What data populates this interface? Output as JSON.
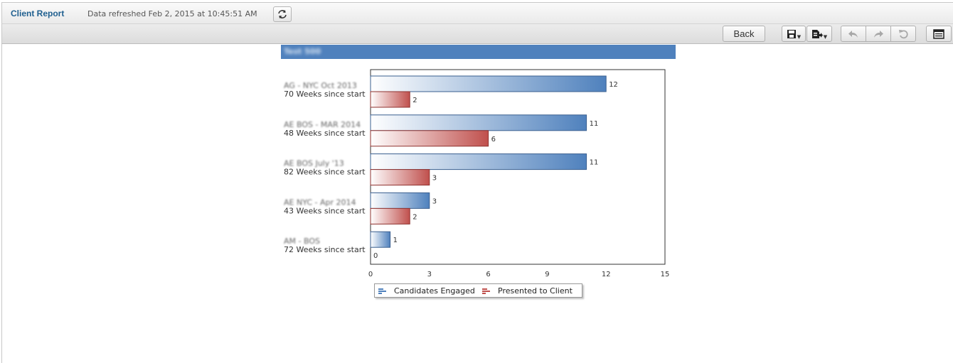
{
  "app": {
    "title": "Client Report",
    "refreshed": "Data refreshed Feb 2, 2015 at 10:45:51 AM"
  },
  "toolbar": {
    "back_label": "Back",
    "icons": [
      "save-icon",
      "export-icon",
      "undo-icon",
      "redo-icon",
      "reset-icon",
      "layout-icon"
    ]
  },
  "report": {
    "header": "Test 500"
  },
  "chart_data": {
    "type": "bar",
    "orientation": "horizontal",
    "categories": [
      {
        "name": "AG - NYC Oct 2013",
        "sub": "70 Weeks since start"
      },
      {
        "name": "AE BOS - MAR 2014",
        "sub": "48 Weeks since start"
      },
      {
        "name": "AE BOS July '13",
        "sub": "82 Weeks since start"
      },
      {
        "name": "AE NYC - Apr 2014",
        "sub": "43 Weeks since start"
      },
      {
        "name": "AM - BOS",
        "sub": "72 Weeks since start"
      }
    ],
    "series": [
      {
        "name": "Candidates Engaged",
        "values": [
          12,
          11,
          11,
          3,
          1
        ],
        "color": "#4f81bd"
      },
      {
        "name": "Presented to Client",
        "values": [
          2,
          6,
          3,
          2,
          0
        ],
        "color": "#c0504d"
      }
    ],
    "xlim": [
      0,
      15
    ],
    "xticks": [
      "0",
      "3",
      "6",
      "9",
      "12",
      "15"
    ],
    "grid": false,
    "legend_position": "bottom"
  }
}
